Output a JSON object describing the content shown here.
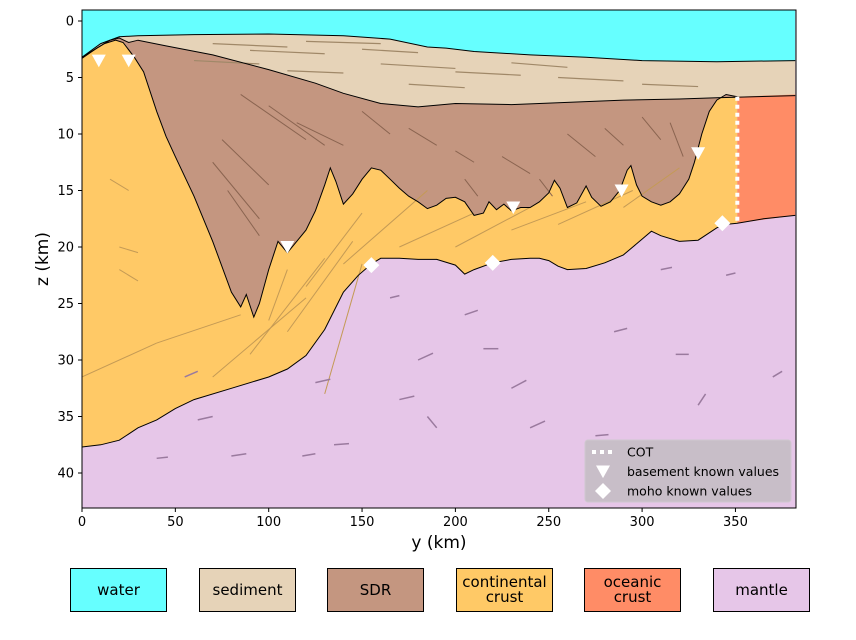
{
  "chart_data": {
    "type": "area",
    "title": "",
    "xlabel": "y (km)",
    "ylabel": "z (km)",
    "xlim": [
      0,
      382
    ],
    "ylim": [
      43,
      -1
    ],
    "xticks": [
      0,
      50,
      100,
      150,
      200,
      250,
      300,
      350
    ],
    "yticks": [
      0,
      5,
      10,
      15,
      20,
      25,
      30,
      35,
      40
    ],
    "grid": false,
    "legend_position": "bottom-right",
    "units": {
      "y": "km",
      "z": "km"
    },
    "layers": [
      {
        "name": "water",
        "color": "#66ffff"
      },
      {
        "name": "sediment",
        "color": "#e6d3b8"
      },
      {
        "name": "SDR",
        "color": "#c49680"
      },
      {
        "name": "continental crust",
        "color": "#ffc966"
      },
      {
        "name": "oceanic crust",
        "color": "#ff8c66"
      },
      {
        "name": "mantle",
        "color": "#e6c6e8"
      }
    ],
    "interfaces": {
      "seafloor": [
        [
          0,
          3.2
        ],
        [
          5,
          2.6
        ],
        [
          10,
          2.0
        ],
        [
          20,
          1.4
        ],
        [
          30,
          1.3
        ],
        [
          60,
          1.2
        ],
        [
          100,
          1.15
        ],
        [
          140,
          1.3
        ],
        [
          165,
          1.6
        ],
        [
          185,
          2.3
        ],
        [
          195,
          2.4
        ],
        [
          210,
          2.7
        ],
        [
          240,
          3.0
        ],
        [
          270,
          3.2
        ],
        [
          300,
          3.5
        ],
        [
          340,
          3.6
        ],
        [
          382,
          3.5
        ]
      ],
      "sediment_base": [
        [
          0,
          3.3
        ],
        [
          8,
          2.4
        ],
        [
          15,
          1.7
        ],
        [
          20,
          1.5
        ],
        [
          25,
          1.9
        ],
        [
          30,
          1.7
        ],
        [
          45,
          2.2
        ],
        [
          70,
          3.0
        ],
        [
          100,
          4.3
        ],
        [
          125,
          5.5
        ],
        [
          140,
          6.4
        ],
        [
          160,
          7.3
        ],
        [
          180,
          7.6
        ],
        [
          200,
          7.3
        ],
        [
          230,
          7.4
        ],
        [
          260,
          7.2
        ],
        [
          290,
          7.0
        ],
        [
          320,
          6.9
        ],
        [
          340,
          6.8
        ],
        [
          382,
          6.6
        ]
      ],
      "basement": [
        [
          0,
          3.2
        ],
        [
          12,
          2.0
        ],
        [
          18,
          1.7
        ],
        [
          22,
          1.9
        ],
        [
          28,
          3.2
        ],
        [
          33,
          4.5
        ],
        [
          40,
          8.0
        ],
        [
          45,
          10.2
        ],
        [
          50,
          12.0
        ],
        [
          60,
          15.5
        ],
        [
          70,
          19.5
        ],
        [
          80,
          24.0
        ],
        [
          85,
          25.3
        ],
        [
          88,
          24.2
        ],
        [
          92,
          26.2
        ],
        [
          95,
          25.0
        ],
        [
          100,
          22.0
        ],
        [
          105,
          19.5
        ],
        [
          110,
          20.5
        ],
        [
          115,
          19.5
        ],
        [
          120,
          18.5
        ],
        [
          125,
          16.8
        ],
        [
          130,
          14.5
        ],
        [
          133,
          13.0
        ],
        [
          136,
          14.2
        ],
        [
          140,
          16.2
        ],
        [
          145,
          15.3
        ],
        [
          150,
          14.0
        ],
        [
          155,
          13.0
        ],
        [
          160,
          13.2
        ],
        [
          165,
          14.0
        ],
        [
          170,
          14.8
        ],
        [
          175,
          15.5
        ],
        [
          180,
          16.0
        ],
        [
          185,
          16.6
        ],
        [
          190,
          16.3
        ],
        [
          195,
          15.7
        ],
        [
          200,
          15.6
        ],
        [
          205,
          16.0
        ],
        [
          210,
          17.2
        ],
        [
          215,
          17.0
        ],
        [
          218,
          16.0
        ],
        [
          222,
          16.7
        ],
        [
          226,
          16.2
        ],
        [
          230,
          16.8
        ],
        [
          235,
          16.5
        ],
        [
          240,
          16.5
        ],
        [
          245,
          16.0
        ],
        [
          250,
          15.2
        ],
        [
          253,
          14.1
        ],
        [
          256,
          14.8
        ],
        [
          260,
          16.5
        ],
        [
          265,
          16.1
        ],
        [
          270,
          14.6
        ],
        [
          273,
          15.6
        ],
        [
          278,
          16.4
        ],
        [
          283,
          16.0
        ],
        [
          288,
          15.0
        ],
        [
          292,
          13.2
        ],
        [
          294,
          12.8
        ],
        [
          297,
          14.5
        ],
        [
          300,
          15.5
        ],
        [
          305,
          16.0
        ],
        [
          310,
          16.3
        ],
        [
          315,
          16.0
        ],
        [
          320,
          15.3
        ],
        [
          325,
          14.0
        ],
        [
          328,
          12.5
        ],
        [
          332,
          10.0
        ],
        [
          336,
          8.0
        ],
        [
          340,
          7.0
        ],
        [
          345,
          6.5
        ],
        [
          351,
          6.7
        ]
      ],
      "moho": [
        [
          0,
          37.7
        ],
        [
          10,
          37.5
        ],
        [
          20,
          37.1
        ],
        [
          30,
          36.0
        ],
        [
          40,
          35.3
        ],
        [
          50,
          34.3
        ],
        [
          60,
          33.5
        ],
        [
          80,
          32.5
        ],
        [
          100,
          31.5
        ],
        [
          110,
          30.8
        ],
        [
          120,
          29.6
        ],
        [
          130,
          27.3
        ],
        [
          140,
          24.0
        ],
        [
          148,
          22.5
        ],
        [
          155,
          21.5
        ],
        [
          160,
          21.0
        ],
        [
          170,
          21.0
        ],
        [
          180,
          21.1
        ],
        [
          190,
          21.1
        ],
        [
          200,
          21.6
        ],
        [
          205,
          22.4
        ],
        [
          210,
          22.0
        ],
        [
          220,
          21.4
        ],
        [
          230,
          21.1
        ],
        [
          240,
          21.0
        ],
        [
          245,
          21.0
        ],
        [
          250,
          21.2
        ],
        [
          255,
          21.7
        ],
        [
          260,
          22.0
        ],
        [
          270,
          21.9
        ],
        [
          280,
          21.4
        ],
        [
          290,
          20.7
        ],
        [
          295,
          20.0
        ],
        [
          300,
          19.3
        ],
        [
          305,
          18.6
        ],
        [
          310,
          19.0
        ],
        [
          320,
          19.5
        ],
        [
          330,
          19.4
        ],
        [
          340,
          18.3
        ],
        [
          345,
          18.0
        ],
        [
          351,
          17.9
        ],
        [
          365,
          17.5
        ],
        [
          382,
          17.2
        ]
      ],
      "oceanic_crust_top": [
        [
          351,
          6.7
        ],
        [
          382,
          6.5
        ]
      ],
      "oceanic_crust_base": [
        [
          351,
          17.9
        ],
        [
          382,
          17.2
        ]
      ]
    },
    "COT": {
      "y": 351,
      "z_range": [
        6.7,
        17.9
      ]
    },
    "basement_known_values": [
      [
        9,
        3.5
      ],
      [
        25,
        3.5
      ],
      [
        110,
        20.0
      ],
      [
        231,
        16.5
      ],
      [
        289,
        15.0
      ],
      [
        330,
        11.7
      ]
    ],
    "moho_known_values": [
      [
        155,
        21.6
      ],
      [
        220,
        21.4
      ],
      [
        343,
        17.9
      ]
    ],
    "legend": [
      {
        "label": "COT",
        "marker": "dotted-line"
      },
      {
        "label": "basement known values",
        "marker": "triangle-down"
      },
      {
        "label": "moho known values",
        "marker": "diamond"
      }
    ]
  },
  "color_key": [
    {
      "label": [
        "water"
      ],
      "color": "#66ffff"
    },
    {
      "label": [
        "sediment"
      ],
      "color": "#e6d3b8"
    },
    {
      "label": [
        "SDR"
      ],
      "color": "#c49680"
    },
    {
      "label": [
        "continental",
        "crust"
      ],
      "color": "#ffc966"
    },
    {
      "label": [
        "oceanic",
        "crust"
      ],
      "color": "#ff8c66"
    },
    {
      "label": [
        "mantle"
      ],
      "color": "#e6c6e8"
    }
  ]
}
